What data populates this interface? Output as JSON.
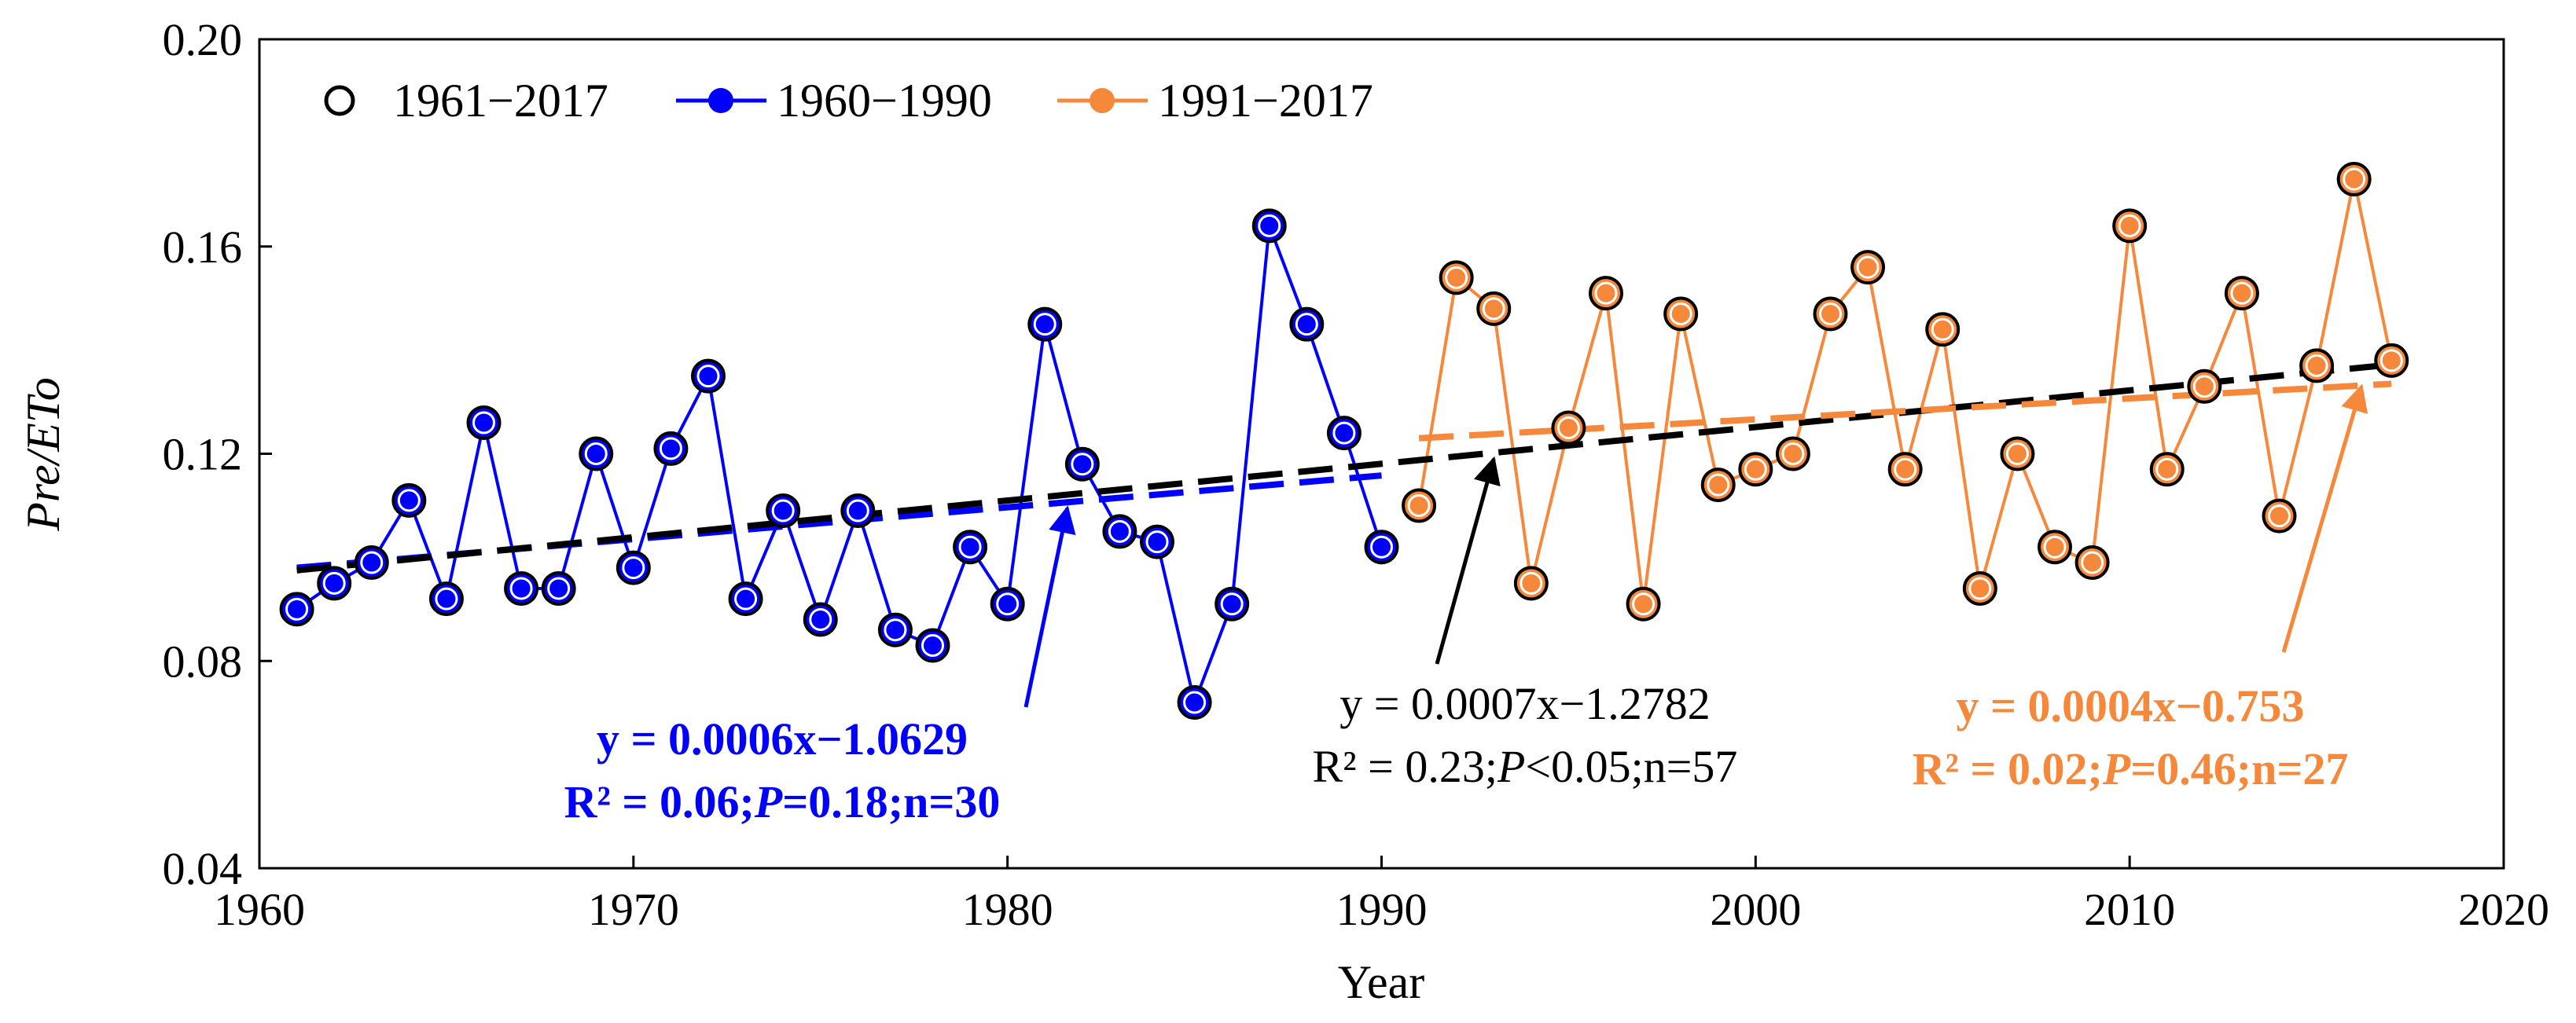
{
  "chart_data": {
    "type": "line",
    "title": "",
    "xlabel": "Year",
    "ylabel_italic": "Pre/ETo",
    "xlim": [
      1960,
      2020
    ],
    "ylim": [
      0.04,
      0.2
    ],
    "xticks": [
      1960,
      1970,
      1980,
      1990,
      2000,
      2010,
      2020
    ],
    "yticks": [
      0.04,
      0.08,
      0.12,
      0.16,
      0.2
    ],
    "ytick_labels": [
      "0.04",
      "0.08",
      "0.12",
      "0.16",
      "0.20"
    ],
    "grid": false,
    "legend_position": "top-left",
    "legend": [
      {
        "label": "1961−2017",
        "style": "open-circle"
      },
      {
        "label": "1960−1990",
        "style": "blue-line-dot"
      },
      {
        "label": "1991−2017",
        "style": "orange-line-dot"
      }
    ],
    "colors": {
      "early": "#0000ff",
      "late": "#f5883a",
      "all": "#000000"
    },
    "series": [
      {
        "name": "1960−1990",
        "color": "#0000ff",
        "x": [
          1961,
          1962,
          1963,
          1964,
          1965,
          1966,
          1967,
          1968,
          1969,
          1970,
          1971,
          1972,
          1973,
          1974,
          1975,
          1976,
          1977,
          1978,
          1979,
          1980,
          1981,
          1982,
          1983,
          1984,
          1985,
          1986,
          1987,
          1988,
          1989,
          1990
        ],
        "values": [
          0.09,
          0.095,
          0.099,
          0.111,
          0.092,
          0.126,
          0.094,
          0.094,
          0.12,
          0.098,
          0.121,
          0.135,
          0.092,
          0.109,
          0.088,
          0.109,
          0.086,
          0.083,
          0.102,
          0.091,
          0.145,
          0.118,
          0.105,
          0.103,
          0.072,
          0.091,
          0.164,
          0.145,
          0.124,
          0.102
        ]
      },
      {
        "name": "1991−2017",
        "color": "#f5883a",
        "x": [
          1991,
          1992,
          1993,
          1994,
          1995,
          1996,
          1997,
          1998,
          1999,
          2000,
          2001,
          2002,
          2003,
          2004,
          2005,
          2006,
          2007,
          2008,
          2009,
          2010,
          2011,
          2012,
          2013,
          2014,
          2015,
          2016,
          2017
        ],
        "values": [
          0.11,
          0.154,
          0.148,
          0.095,
          0.125,
          0.151,
          0.091,
          0.147,
          0.114,
          0.117,
          0.12,
          0.147,
          0.156,
          0.117,
          0.144,
          0.094,
          0.12,
          0.102,
          0.099,
          0.164,
          0.117,
          0.133,
          0.151,
          0.108,
          0.137,
          0.173,
          0.138
        ]
      }
    ],
    "trendlines": [
      {
        "name": "1960−1990 trend",
        "color": "#0000ff",
        "x": [
          1961,
          1990
        ],
        "y": [
          0.098,
          0.1158
        ]
      },
      {
        "name": "1961−2017 trend",
        "color": "#000000",
        "x": [
          1961,
          2017
        ],
        "y": [
          0.0975,
          0.1372
        ]
      },
      {
        "name": "1991−2017 trend",
        "color": "#f5883a",
        "x": [
          1991,
          2017
        ],
        "y": [
          0.123,
          0.1335
        ]
      }
    ],
    "annotations": [
      {
        "key": "blue",
        "color": "#0000ff",
        "bold": true,
        "line1": "y = 0.0006x−1.0629",
        "line2_parts": [
          "R² = 0.06;",
          "P",
          "=0.18;n=30"
        ],
        "arrow_to": [
          1981.6,
          0.1095
        ]
      },
      {
        "key": "black",
        "color": "#000000",
        "bold": false,
        "line1": "y = 0.0007x−1.2782",
        "line2_parts": [
          "R² = 0.23;",
          "P",
          "<0.05;n=57"
        ],
        "arrow_to": [
          1993.0,
          0.119
        ]
      },
      {
        "key": "orange",
        "color": "#f5883a",
        "bold": true,
        "line1": "y = 0.0004x−0.753",
        "line2_parts": [
          "R² = 0.02;",
          "P",
          "=0.46;n=27"
        ],
        "arrow_to": [
          2016.2,
          0.133
        ]
      }
    ]
  }
}
